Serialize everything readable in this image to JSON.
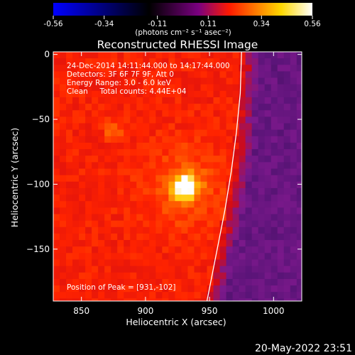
{
  "colorbar": {
    "tick_labels": [
      "-0.56",
      "-0.34",
      "-0.11",
      "0.11",
      "0.34",
      "0.56"
    ],
    "ticks": [
      -0.56,
      -0.34,
      -0.11,
      0.11,
      0.34,
      0.56
    ],
    "range": [
      -0.56,
      0.56
    ],
    "units": "(photons cm⁻² s⁻¹ asec⁻²)",
    "colors": [
      "#0000ff",
      "#000000",
      "#7a0080",
      "#ff1a00",
      "#ffd800",
      "#ffffff"
    ]
  },
  "chart_data": {
    "type": "heatmap",
    "title": "Reconstructed RHESSI Image",
    "xlabel": "Heliocentric X (arcsec)",
    "ylabel": "Heliocentric Y (arcsec)",
    "xlim": [
      828,
      1022
    ],
    "ylim": [
      -190,
      2
    ],
    "xticks": [
      850,
      900,
      950,
      1000
    ],
    "yticks": [
      0,
      -50,
      -100,
      -150
    ],
    "xtick_labels": [
      "850",
      "900",
      "950",
      "1000"
    ],
    "ytick_labels": [
      "0",
      "−50",
      "−100",
      "−150"
    ],
    "annotations": [
      "24-Dec-2014 14:11:44.000 to 14:17:44.000",
      "Detectors: 3F 6F 7F 9F, Att 0",
      "Energy Range: 3.0 - 6.0 keV",
      "Clean     Total counts: 4.44E+04"
    ],
    "peak_label": "Position of Peak = [931,-102]",
    "peak": {
      "x": 931,
      "y": -102
    },
    "secondary_source": {
      "x": 875,
      "y": -58
    },
    "limb_curve": [
      [
        975,
        2
      ],
      [
        974,
        -30
      ],
      [
        971,
        -60
      ],
      [
        967,
        -90
      ],
      [
        962,
        -120
      ],
      [
        956,
        -150
      ],
      [
        950,
        -180
      ],
      [
        948,
        -190
      ]
    ]
  },
  "footer": {
    "date": "20-May-2022 23:51"
  }
}
